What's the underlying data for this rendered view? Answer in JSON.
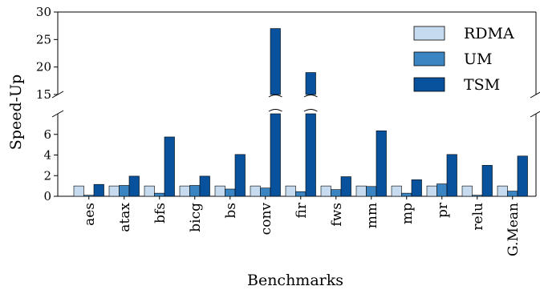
{
  "chart_data": {
    "type": "bar",
    "xlabel": "Benchmarks",
    "ylabel": "Speed-Up",
    "broken_axis": true,
    "upper_ylim": [
      15,
      30
    ],
    "lower_ylim": [
      0,
      8
    ],
    "upper_ticks": [
      15,
      20,
      25,
      30
    ],
    "lower_ticks": [
      0,
      2,
      4,
      6
    ],
    "legend_position": "top-right",
    "categories": [
      "aes",
      "atax",
      "bfs",
      "bicg",
      "bs",
      "conv",
      "fir",
      "fws",
      "mm",
      "mp",
      "pr",
      "relu",
      "G.Mean"
    ],
    "series": [
      {
        "name": "RDMA",
        "color": "#c6dbef",
        "values": [
          1.0,
          1.0,
          1.0,
          1.0,
          1.0,
          1.0,
          1.0,
          1.0,
          1.0,
          1.0,
          1.0,
          1.0,
          1.0
        ]
      },
      {
        "name": "UM",
        "color": "#3a85c2",
        "values": [
          0.1,
          1.05,
          0.3,
          1.05,
          0.7,
          0.8,
          0.45,
          0.65,
          0.95,
          0.3,
          1.2,
          0.1,
          0.5
        ]
      },
      {
        "name": "TSM",
        "color": "#08519c",
        "values": [
          1.15,
          1.95,
          5.75,
          1.95,
          4.05,
          27.0,
          19.0,
          1.9,
          6.35,
          1.6,
          4.05,
          3.0,
          3.9
        ]
      }
    ]
  }
}
